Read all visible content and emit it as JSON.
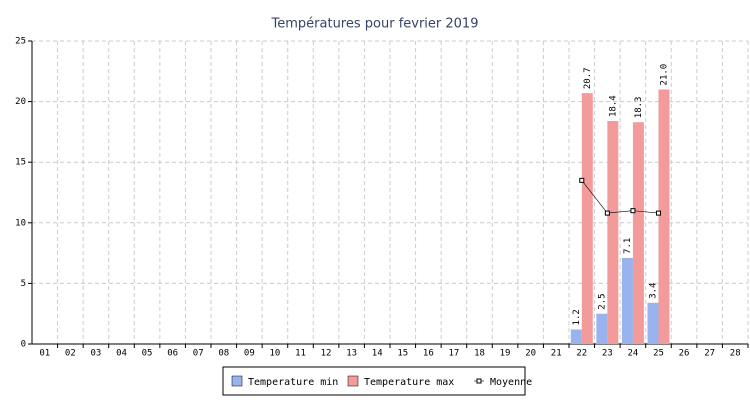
{
  "chart_data": {
    "type": "bar",
    "title": "Températures pour fevrier 2019",
    "categories": [
      "01",
      "02",
      "03",
      "04",
      "05",
      "06",
      "07",
      "08",
      "09",
      "10",
      "11",
      "12",
      "13",
      "14",
      "15",
      "16",
      "17",
      "18",
      "19",
      "20",
      "21",
      "22",
      "23",
      "24",
      "25",
      "26",
      "27",
      "28"
    ],
    "series": [
      {
        "name": "Temperature min",
        "color": "#99b3ee",
        "values": [
          null,
          null,
          null,
          null,
          null,
          null,
          null,
          null,
          null,
          null,
          null,
          null,
          null,
          null,
          null,
          null,
          null,
          null,
          null,
          null,
          null,
          1.2,
          2.5,
          7.1,
          3.4,
          null,
          null,
          null
        ]
      },
      {
        "name": "Temperature max",
        "color": "#f39a9a",
        "values": [
          null,
          null,
          null,
          null,
          null,
          null,
          null,
          null,
          null,
          null,
          null,
          null,
          null,
          null,
          null,
          null,
          null,
          null,
          null,
          null,
          null,
          20.7,
          18.4,
          18.3,
          21.0,
          null,
          null,
          null
        ],
        "value_labels": [
          null,
          null,
          null,
          null,
          null,
          null,
          null,
          null,
          null,
          null,
          null,
          null,
          null,
          null,
          null,
          null,
          null,
          null,
          null,
          null,
          null,
          "20.7",
          "18.4",
          "18.3",
          "21.0",
          null,
          null,
          null
        ]
      },
      {
        "name": "Moyenne",
        "type": "line",
        "color": "#000000",
        "values": [
          null,
          null,
          null,
          null,
          null,
          null,
          null,
          null,
          null,
          null,
          null,
          null,
          null,
          null,
          null,
          null,
          null,
          null,
          null,
          null,
          null,
          13.5,
          10.8,
          11.0,
          10.8,
          null,
          null,
          null
        ]
      }
    ],
    "ylim": [
      0,
      25
    ],
    "yticks": [
      0,
      5,
      10,
      15,
      20,
      25
    ],
    "grid": true
  }
}
